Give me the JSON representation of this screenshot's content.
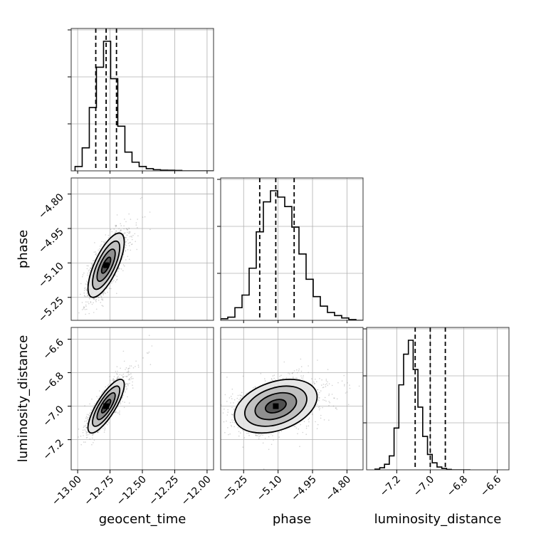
{
  "chart_data": {
    "type": "corner",
    "parameters": [
      {
        "name": "geocent_time",
        "label": "geocent_time",
        "range": [
          -13.05,
          -11.95
        ],
        "ticks": [
          -13.0,
          -12.75,
          -12.5,
          -12.25,
          -12.0
        ],
        "tick_labels": [
          "−13.00",
          "−12.75",
          "−12.50",
          "−12.25",
          "−12.00"
        ],
        "quantiles": [
          -12.86,
          -12.78,
          -12.7
        ],
        "hist_edges_start": -13.02,
        "hist_bin_width": 0.055,
        "hist_counts": [
          0.03,
          0.16,
          0.44,
          0.72,
          0.9,
          0.64,
          0.31,
          0.13,
          0.06,
          0.03,
          0.015,
          0.008,
          0.005,
          0.004,
          0.003,
          0.0,
          0.0,
          0.0,
          0.0,
          0.0
        ]
      },
      {
        "name": "phase",
        "label": "phase",
        "range": [
          -5.35,
          -4.73
        ],
        "ticks": [
          -5.25,
          -5.1,
          -4.95,
          -4.8
        ],
        "tick_labels": [
          "−5.25",
          "−5.10",
          "−4.95",
          "−4.80"
        ],
        "quantiles": [
          -5.18,
          -5.11,
          -5.03
        ],
        "hist_edges_start": -5.35,
        "hist_bin_width": 0.031,
        "hist_counts": [
          0.01,
          0.02,
          0.08,
          0.16,
          0.33,
          0.56,
          0.75,
          0.82,
          0.78,
          0.72,
          0.59,
          0.42,
          0.26,
          0.15,
          0.09,
          0.05,
          0.03,
          0.015,
          0.005,
          0.0
        ]
      },
      {
        "name": "luminosity_distance",
        "label": "luminosity_distance",
        "range": [
          -7.38,
          -6.53
        ],
        "ticks": [
          -7.2,
          -7.0,
          -6.8,
          -6.6
        ],
        "tick_labels": [
          "−7.2",
          "−7.0",
          "−6.8",
          "−6.6"
        ],
        "y_tick_labels": [
          "−6.6",
          "−6.8",
          "−7.0",
          "−7.2"
        ],
        "quantiles": [
          -7.09,
          -7.0,
          -6.91
        ],
        "hist_edges_start": -7.33,
        "hist_bin_width": 0.0285,
        "hist_counts": [
          0.005,
          0.015,
          0.04,
          0.1,
          0.3,
          0.61,
          0.83,
          0.93,
          0.72,
          0.45,
          0.24,
          0.11,
          0.05,
          0.02,
          0.01,
          0.003,
          0.0,
          0.0,
          0.0,
          0.0
        ]
      }
    ],
    "pairs": [
      {
        "x": "geocent_time",
        "y": "phase",
        "center": [
          -12.78,
          -5.11
        ],
        "sigma": [
          0.07,
          0.07
        ],
        "corr": 0.72
      },
      {
        "x": "geocent_time",
        "y": "luminosity_distance",
        "center": [
          -12.78,
          -7.0
        ],
        "sigma": [
          0.07,
          0.08
        ],
        "corr": 0.8
      },
      {
        "x": "phase",
        "y": "luminosity_distance",
        "center": [
          -5.11,
          -7.0
        ],
        "sigma": [
          0.09,
          0.08
        ],
        "corr": 0.35
      }
    ],
    "contour_levels_sigma": [
      0.5,
      1.0,
      1.5,
      2.0
    ],
    "grid": true,
    "colors": {
      "hist": "#000000",
      "points": "#7f7f7f",
      "grid": "#b0b0b0"
    }
  }
}
